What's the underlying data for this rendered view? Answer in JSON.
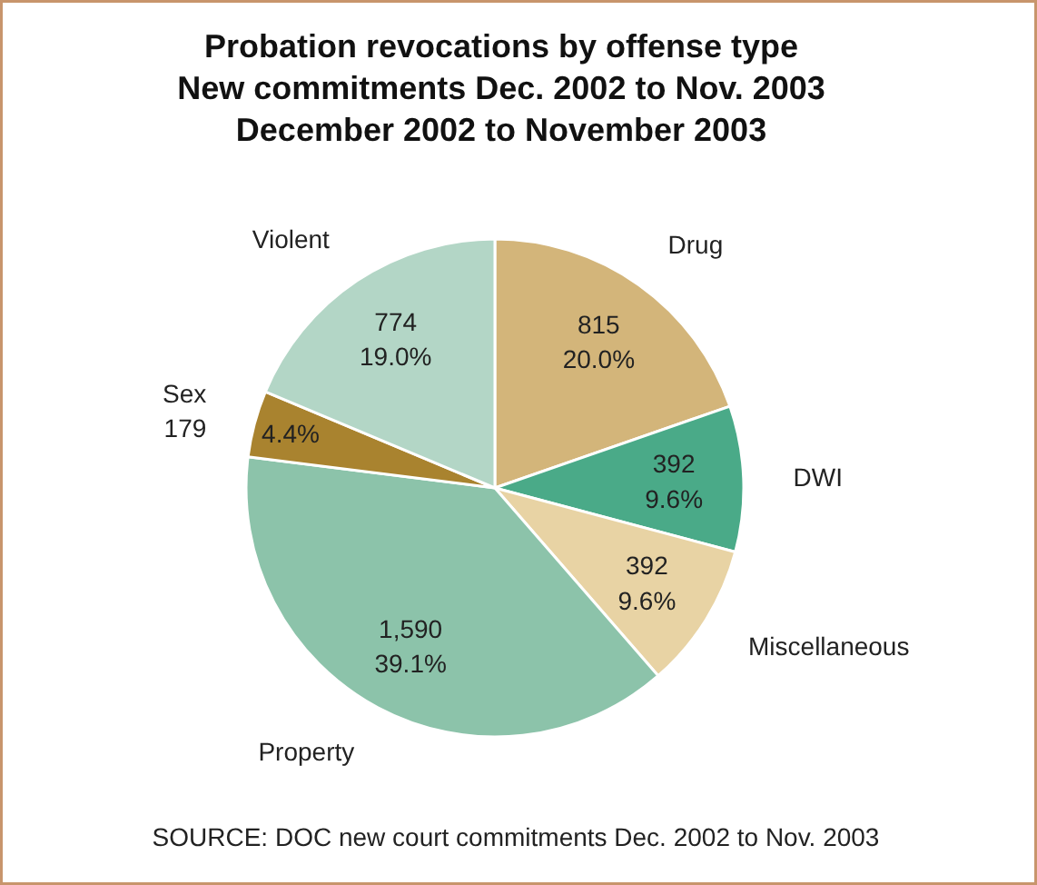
{
  "chart_data": {
    "type": "pie",
    "title": "Probation revocations by offense type\nNew commitments Dec. 2002 to Nov. 2003\nDecember 2002 to November 2003",
    "categories": [
      "Drug",
      "DWI",
      "Miscellaneous",
      "Property",
      "Sex",
      "Violent"
    ],
    "values": [
      815,
      392,
      392,
      1590,
      179,
      774
    ],
    "value_labels": [
      "815\n20.0%",
      "392\n9.6%",
      "392\n9.6%",
      "1,590\n39.1%",
      "179",
      "774\n19.0%"
    ],
    "colors": [
      "#d3b57a",
      "#4aaa88",
      "#e8d3a4",
      "#8cc3aa",
      "#a9832f",
      "#b3d6c6"
    ],
    "annotations": [
      {
        "text": "4.4%",
        "x": "Sex"
      },
      "SOURCE: DOC new court commitments Dec. 2002 to Nov. 2003"
    ]
  }
}
